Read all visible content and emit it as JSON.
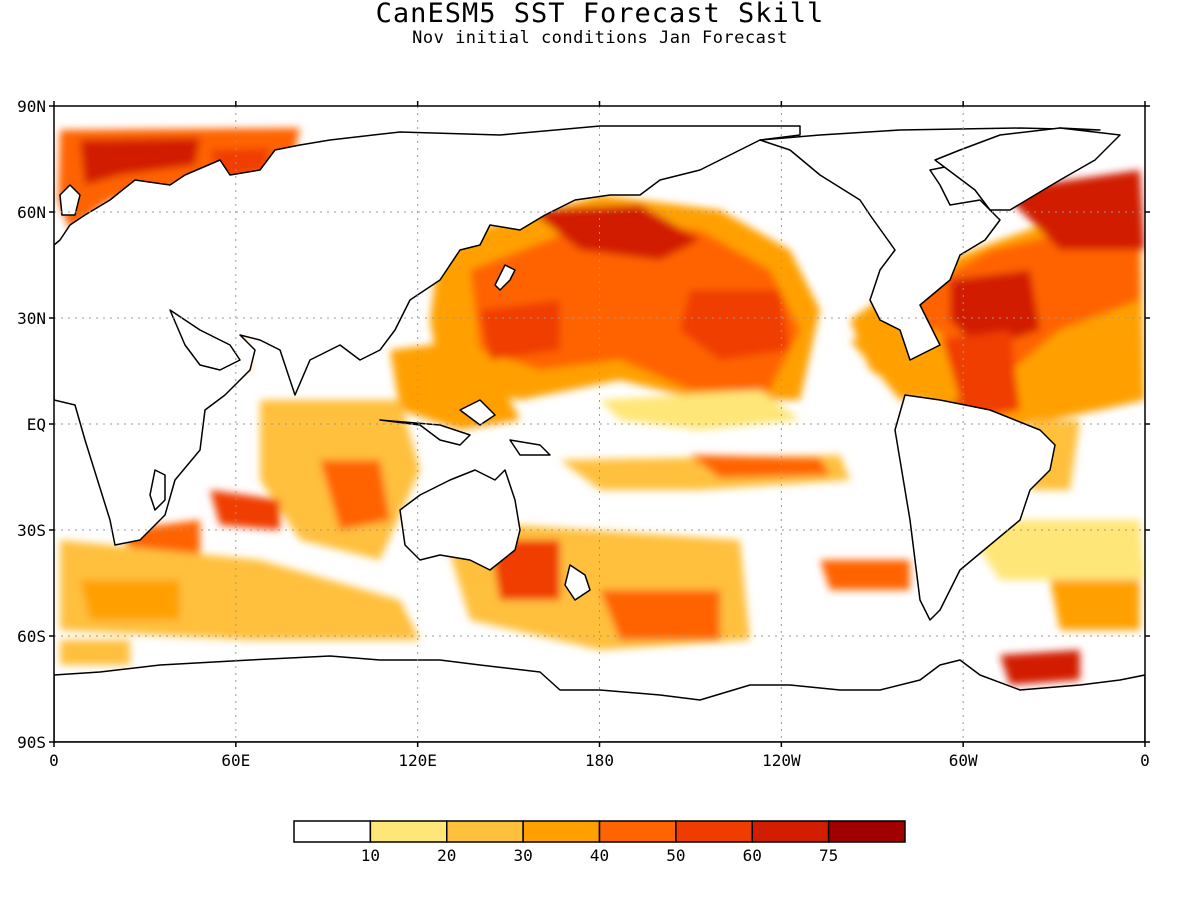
{
  "title": "CanESM5 SST Forecast Skill",
  "subtitle": "Nov initial conditions  Jan Forecast",
  "map": {
    "lat_labels": [
      "90N",
      "60N",
      "30N",
      "EQ",
      "30S",
      "60S",
      "90S"
    ],
    "lon_labels": [
      "0",
      "60E",
      "120E",
      "180",
      "120W",
      "60W",
      "0"
    ],
    "grid": true
  },
  "colorbar": {
    "colors": [
      "#ffffff",
      "#ffe678",
      "#ffc03c",
      "#ffa000",
      "#ff6400",
      "#f03c00",
      "#d21e00",
      "#a00000"
    ],
    "labels": [
      "10",
      "20",
      "30",
      "40",
      "50",
      "60",
      "75"
    ]
  }
}
